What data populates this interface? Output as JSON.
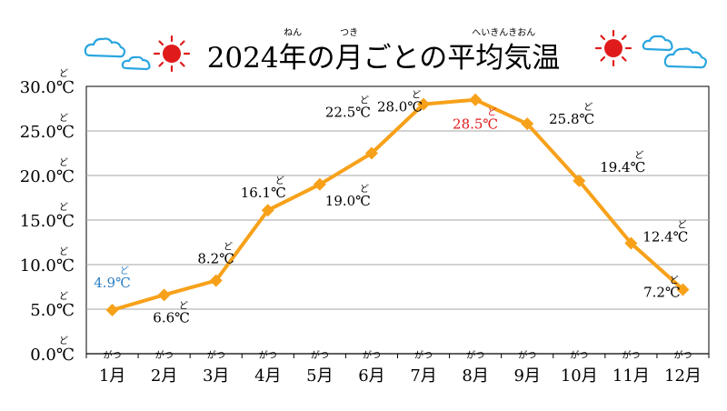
{
  "title": {
    "text": "2024年の月ごとの平均気温",
    "ruby": [
      {
        "kanji": "年",
        "reading": "ねん"
      },
      {
        "kanji": "月",
        "reading": "つき"
      },
      {
        "kanji": "平均気温",
        "reading": "へいきんきおん"
      }
    ]
  },
  "chart_data": {
    "type": "line",
    "categories": [
      "1月",
      "2月",
      "3月",
      "4月",
      "5月",
      "6月",
      "7月",
      "8月",
      "9月",
      "10月",
      "11月",
      "12月"
    ],
    "category_ruby": "がつ",
    "values": [
      4.9,
      6.6,
      8.2,
      16.1,
      19.0,
      22.5,
      28.0,
      28.5,
      25.8,
      19.4,
      12.4,
      7.2
    ],
    "data_labels": [
      "4.9℃",
      "6.6℃",
      "8.2℃",
      "16.1℃",
      "19.0℃",
      "22.5℃",
      "28.0℃",
      "28.5℃",
      "25.8℃",
      "19.4℃",
      "12.4℃",
      "7.2℃"
    ],
    "label_ruby": "ど",
    "ylim": [
      0,
      30
    ],
    "y_ticks": [
      0,
      5,
      10,
      15,
      20,
      25,
      30
    ],
    "y_tick_labels": [
      "0.0℃",
      "5.0℃",
      "10.0℃",
      "15.0℃",
      "20.0℃",
      "25.0℃",
      "30.0℃"
    ],
    "grid": true,
    "legend": "none",
    "colors": {
      "line": "#f7a11a",
      "min_label": "#2e7fc4",
      "max_label": "#e01b1b",
      "text": "#000000",
      "grid": "#a6a6a6"
    }
  },
  "icons": [
    "cloud-icon",
    "sun-icon"
  ]
}
